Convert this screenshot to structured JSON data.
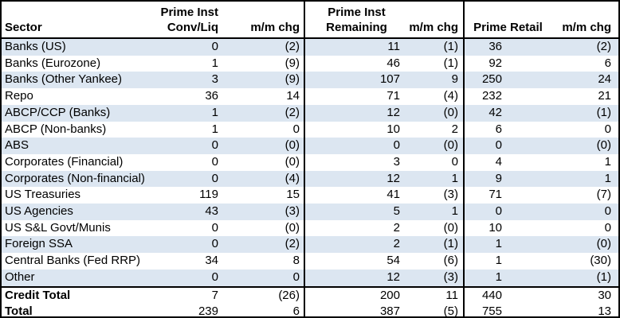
{
  "colors": {
    "stripe_fill": "#dce6f1",
    "border": "#000000",
    "text": "#000000",
    "background": "#ffffff"
  },
  "table": {
    "header": {
      "sector": "Sector",
      "g1_line1": "Prime Inst",
      "g1_line2": "Conv/Liq",
      "g1_chg": "m/m chg",
      "g2_line1": "Prime Inst",
      "g2_line2": "Remaining",
      "g2_chg": "m/m chg",
      "g3_line2": "Prime Retail",
      "g3_chg": "m/m chg"
    },
    "rows": [
      {
        "sector": "Banks (US)",
        "values": [
          "0",
          "(2)",
          "11",
          "(1)",
          "36",
          "(2)"
        ]
      },
      {
        "sector": "Banks (Eurozone)",
        "values": [
          "1",
          "(9)",
          "46",
          "(1)",
          "92",
          "6"
        ]
      },
      {
        "sector": "Banks (Other Yankee)",
        "values": [
          "3",
          "(9)",
          "107",
          "9",
          "250",
          "24"
        ]
      },
      {
        "sector": "Repo",
        "values": [
          "36",
          "14",
          "71",
          "(4)",
          "232",
          "21"
        ]
      },
      {
        "sector": "ABCP/CCP (Banks)",
        "values": [
          "1",
          "(2)",
          "12",
          "(0)",
          "42",
          "(1)"
        ]
      },
      {
        "sector": "ABCP (Non-banks)",
        "values": [
          "1",
          "0",
          "10",
          "2",
          "6",
          "0"
        ]
      },
      {
        "sector": "ABS",
        "values": [
          "0",
          "(0)",
          "0",
          "(0)",
          "0",
          "(0)"
        ]
      },
      {
        "sector": "Corporates (Financial)",
        "values": [
          "0",
          "(0)",
          "3",
          "0",
          "4",
          "1"
        ]
      },
      {
        "sector": "Corporates (Non-financial)",
        "values": [
          "0",
          "(4)",
          "12",
          "1",
          "9",
          "1"
        ]
      },
      {
        "sector": "US Treasuries",
        "values": [
          "119",
          "15",
          "41",
          "(3)",
          "71",
          "(7)"
        ]
      },
      {
        "sector": "US Agencies",
        "values": [
          "43",
          "(3)",
          "5",
          "1",
          "0",
          "0"
        ]
      },
      {
        "sector": "US S&L Govt/Munis",
        "values": [
          "0",
          "(0)",
          "2",
          "(0)",
          "10",
          "0"
        ]
      },
      {
        "sector": "Foreign SSA",
        "values": [
          "0",
          "(2)",
          "2",
          "(1)",
          "1",
          "(0)"
        ]
      },
      {
        "sector": "Central Banks (Fed RRP)",
        "values": [
          "34",
          "8",
          "54",
          "(6)",
          "1",
          "(30)"
        ]
      },
      {
        "sector": "Other",
        "values": [
          "0",
          "0",
          "12",
          "(3)",
          "1",
          "(1)"
        ]
      }
    ],
    "totals": [
      {
        "sector": "Credit Total",
        "values": [
          "7",
          "(26)",
          "200",
          "11",
          "440",
          "30"
        ]
      },
      {
        "sector": "Total",
        "values": [
          "239",
          "6",
          "387",
          "(5)",
          "755",
          "13"
        ]
      }
    ]
  },
  "chart_data": {
    "type": "table",
    "title": "",
    "columns": [
      "Sector",
      "Prime Inst Conv/Liq",
      "m/m chg",
      "Prime Inst Remaining",
      "m/m chg",
      "Prime Retail",
      "m/m chg"
    ],
    "rows": [
      [
        "Banks (US)",
        0,
        -2,
        11,
        -1,
        36,
        -2
      ],
      [
        "Banks (Eurozone)",
        1,
        -9,
        46,
        -1,
        92,
        6
      ],
      [
        "Banks (Other Yankee)",
        3,
        -9,
        107,
        9,
        250,
        24
      ],
      [
        "Repo",
        36,
        14,
        71,
        -4,
        232,
        21
      ],
      [
        "ABCP/CCP (Banks)",
        1,
        -2,
        12,
        0,
        42,
        -1
      ],
      [
        "ABCP (Non-banks)",
        1,
        0,
        10,
        2,
        6,
        0
      ],
      [
        "ABS",
        0,
        0,
        0,
        0,
        0,
        0
      ],
      [
        "Corporates (Financial)",
        0,
        0,
        3,
        0,
        4,
        1
      ],
      [
        "Corporates (Non-financial)",
        0,
        -4,
        12,
        1,
        9,
        1
      ],
      [
        "US Treasuries",
        119,
        15,
        41,
        -3,
        71,
        -7
      ],
      [
        "US Agencies",
        43,
        -3,
        5,
        1,
        0,
        0
      ],
      [
        "US S&L Govt/Munis",
        0,
        0,
        2,
        0,
        10,
        0
      ],
      [
        "Foreign SSA",
        0,
        -2,
        2,
        -1,
        1,
        0
      ],
      [
        "Central Banks (Fed RRP)",
        34,
        8,
        54,
        -6,
        1,
        -30
      ],
      [
        "Other",
        0,
        0,
        12,
        -3,
        1,
        -1
      ],
      [
        "Credit Total",
        7,
        -26,
        200,
        11,
        440,
        30
      ],
      [
        "Total",
        239,
        6,
        387,
        -5,
        755,
        13
      ]
    ],
    "notes": "Negative month-over-month changes shown in parentheses; rows alternate pale-blue striping; bold totals at bottom."
  }
}
